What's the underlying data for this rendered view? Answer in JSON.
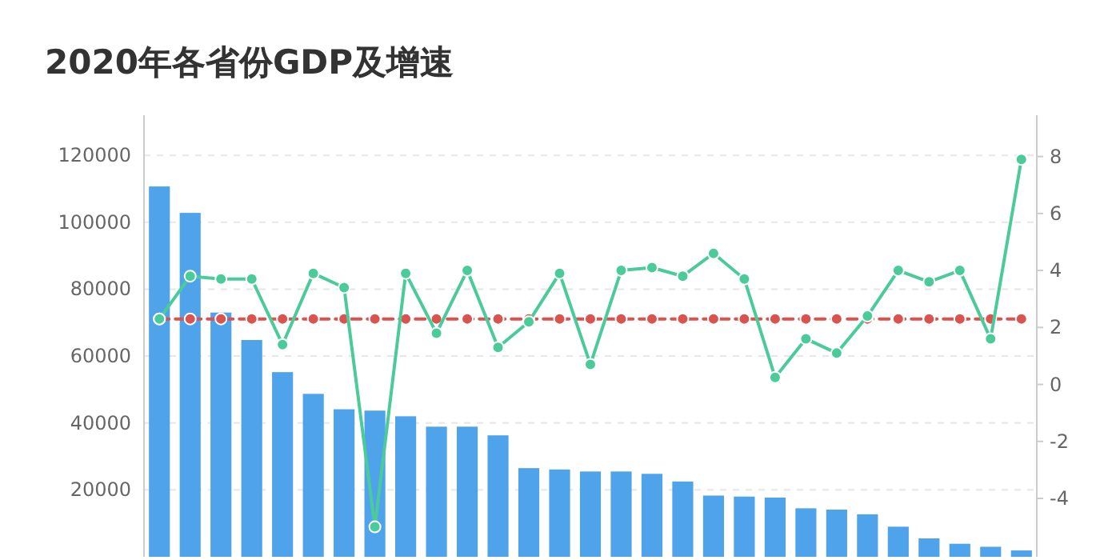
{
  "chart_data": {
    "type": "bar",
    "title": "2020年各省份GDP及增速",
    "categories": [
      null,
      null,
      null,
      null,
      null,
      null,
      null,
      null,
      null,
      null,
      null,
      null,
      null,
      null,
      null,
      null,
      null,
      null,
      null,
      null,
      null,
      null,
      null,
      null,
      null,
      null,
      null,
      null,
      null
    ],
    "series": [
      {
        "color": "#4fa3ea",
        "values": [
          110700,
          102800,
          73000,
          64800,
          55200,
          48700,
          44100,
          43700,
          42000,
          38900,
          38900,
          36300,
          26500,
          26100,
          25500,
          25500,
          24800,
          22500,
          18300,
          18000,
          17700,
          14500,
          14100,
          12700,
          9000,
          5500,
          3900,
          3000,
          1900
        ]
      },
      {
        "type": "line",
        "axis": "y2",
        "color": "#4ccb9a",
        "marker": "circle",
        "line_style": "solid",
        "values": [
          2.3,
          3.8,
          3.7,
          3.7,
          1.4,
          3.9,
          3.4,
          -5.0,
          3.9,
          1.8,
          4.0,
          1.3,
          2.2,
          3.9,
          0.7,
          4.0,
          4.1,
          3.8,
          4.6,
          3.7,
          0.25,
          1.6,
          1.1,
          2.4,
          4.0,
          3.6,
          4.0,
          1.6,
          7.9
        ]
      },
      {
        "type": "line",
        "axis": "y2",
        "color": "#d9534f",
        "marker": "circle",
        "line_style": "dashed",
        "values": [
          2.3,
          2.3,
          2.3,
          2.3,
          2.3,
          2.3,
          2.3,
          2.3,
          2.3,
          2.3,
          2.3,
          2.3,
          2.3,
          2.3,
          2.3,
          2.3,
          2.3,
          2.3,
          2.3,
          2.3,
          2.3,
          2.3,
          2.3,
          2.3,
          2.3,
          2.3,
          2.3,
          2.3,
          2.3
        ]
      }
    ],
    "ylim": [
      0,
      132000
    ],
    "yticks": [
      20000,
      40000,
      60000,
      80000,
      100000,
      120000
    ],
    "y2lim": [
      -6.05,
      9.45
    ],
    "y2ticks": [
      -4,
      -2,
      0,
      2,
      4,
      6,
      8
    ],
    "grid": "y"
  }
}
